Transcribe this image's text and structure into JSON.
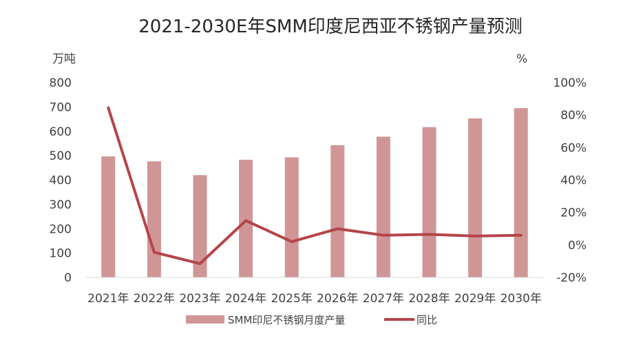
{
  "chart_data": {
    "type": "bar+line",
    "title": "2021-2030E年SMM印度尼西亚不锈钢产量预测",
    "categories": [
      "2021年",
      "2022年",
      "2023年",
      "2024年",
      "2025年",
      "2026年",
      "2027年",
      "2028年",
      "2029年",
      "2030年"
    ],
    "y_left": {
      "unit": "万吨",
      "range": [
        0,
        800
      ],
      "ticks": [
        "0",
        "100",
        "200",
        "300",
        "400",
        "500",
        "600",
        "700",
        "800"
      ]
    },
    "y_right": {
      "unit": "%",
      "range": [
        -20,
        100
      ],
      "ticks": [
        "-20%",
        "0%",
        "20%",
        "40%",
        "60%",
        "80%",
        "100%"
      ]
    },
    "series": [
      {
        "name": "SMM印尼不锈钢月度产量",
        "type": "bar",
        "axis": "left",
        "color": "#D09696",
        "values": [
          497,
          477,
          420,
          483,
          493,
          543,
          578,
          617,
          653,
          695
        ]
      },
      {
        "name": "同比",
        "type": "line",
        "axis": "right",
        "color": "#B5444A",
        "values": [
          84.5,
          -4.5,
          -11.5,
          15,
          2,
          10,
          6,
          6.5,
          5.5,
          6
        ]
      }
    ],
    "legend_position": "bottom-center",
    "grid": false
  }
}
